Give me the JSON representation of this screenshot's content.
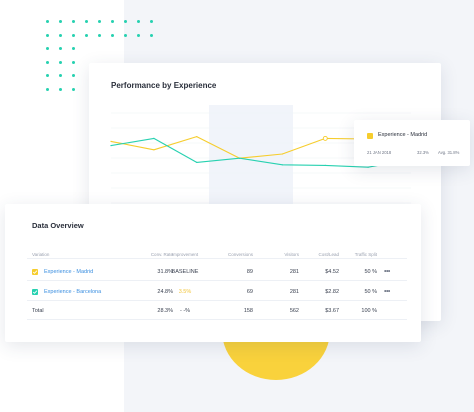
{
  "performance_card": {
    "title": "Performance by Experience"
  },
  "tooltip": {
    "title": "Experience - Madrid",
    "date": "21 JAN 2018",
    "value": "32.3%",
    "avg": "Avg. 31.8%"
  },
  "data_overview": {
    "title": "Data Overview",
    "headers": {
      "variation": "Variation",
      "conv_rate": "Conv. Rate",
      "improvement": "Improvement",
      "conversions": "Conversions",
      "visitors": "Visitors",
      "cost_lead": "Cost/Lead",
      "traffic_split": "Traffic Split"
    },
    "rows": [
      {
        "name": "Experience - Madrid",
        "conv_rate": "31.8%",
        "improvement": "BASELINE",
        "conversions": "89",
        "visitors": "281",
        "cost_lead": "$4.52",
        "traffic_split": "50 %",
        "more": "•••"
      },
      {
        "name": "Experience - Barcelona",
        "conv_rate": "24.8%",
        "improvement": "3.5%",
        "conversions": "69",
        "visitors": "281",
        "cost_lead": "$2.82",
        "traffic_split": "50 %",
        "more": "•••"
      },
      {
        "name": "Total",
        "conv_rate": "28.3%",
        "improvement": "- -%",
        "conversions": "158",
        "visitors": "562",
        "cost_lead": "$3.67",
        "traffic_split": "100 %"
      }
    ]
  },
  "colors": {
    "accent_teal": "#27d1b0",
    "accent_yellow": "#f6cd2d",
    "link_blue": "#3b8fe0"
  },
  "chart_data": {
    "type": "line",
    "title": "Performance by Experience",
    "x": [
      0,
      1,
      2,
      3,
      4,
      5,
      6,
      7
    ],
    "series": [
      {
        "name": "Experience - Madrid",
        "values": [
          30.6,
          29.2,
          31.4,
          27.8,
          28.5,
          31.1,
          31.0,
          30.4
        ]
      },
      {
        "name": "Experience - Barcelona",
        "values": [
          29.9,
          31.1,
          27.1,
          27.8,
          26.7,
          26.6,
          26.3,
          27.6
        ]
      }
    ],
    "ylim": [
      22,
      37
    ],
    "grid": true
  }
}
